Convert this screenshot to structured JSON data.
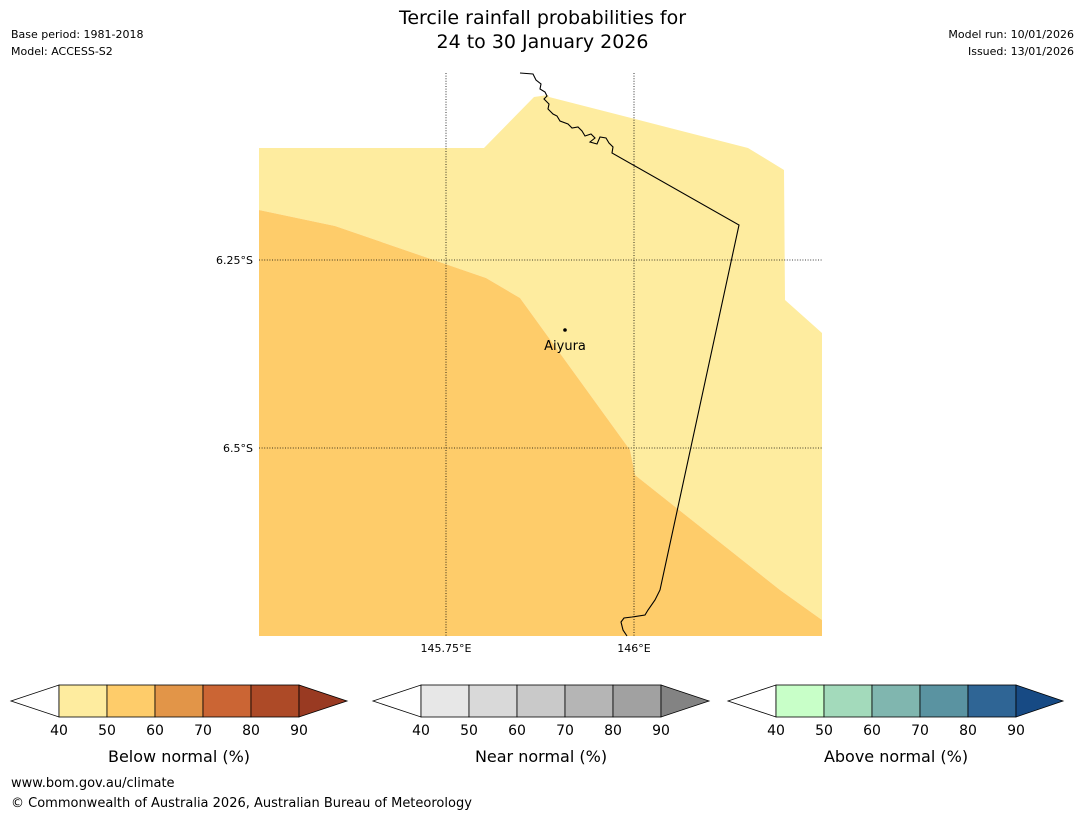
{
  "header": {
    "title_line1": "Tercile rainfall probabilities for",
    "title_line2": "24 to 30 January 2026",
    "base_period": "Base period: 1981-2018",
    "model": "Model: ACCESS-S2",
    "model_run": "Model run: 10/01/2026",
    "issued": "Issued: 13/01/2026"
  },
  "map": {
    "lat_labels": [
      "6.25°S",
      "6.5°S"
    ],
    "lon_labels": [
      "145.75°E",
      "146°E"
    ],
    "place": {
      "name": "Aiyura"
    },
    "colors": {
      "prob_40_50": "#FEEC9F",
      "prob_50_60": "#FECC6A",
      "border": "#000000"
    }
  },
  "colorbars": [
    {
      "title": "Below normal (%)",
      "ticks": [
        "40",
        "50",
        "60",
        "70",
        "80",
        "90"
      ],
      "low_color": "#FFFFFF",
      "colors": [
        "#FEEC9F",
        "#FECC6A",
        "#E29548",
        "#CB6534",
        "#AD4A27"
      ],
      "high_color": "#993A22"
    },
    {
      "title": "Near normal (%)",
      "ticks": [
        "40",
        "50",
        "60",
        "70",
        "80",
        "90"
      ],
      "low_color": "#FFFFFF",
      "colors": [
        "#E7E7E7",
        "#D9D9D9",
        "#C9C9C9",
        "#B5B5B5",
        "#A1A1A1"
      ],
      "high_color": "#838383"
    },
    {
      "title": "Above normal (%)",
      "ticks": [
        "40",
        "50",
        "60",
        "70",
        "80",
        "90"
      ],
      "low_color": "#FFFFFF",
      "colors": [
        "#C8FFC8",
        "#A3DABB",
        "#80B6AF",
        "#5A93A1",
        "#2F6595"
      ],
      "high_color": "#174A84"
    }
  ],
  "footer": {
    "url": "www.bom.gov.au/climate",
    "copyright": "© Commonwealth of Australia 2026, Australian Bureau of Meteorology"
  }
}
